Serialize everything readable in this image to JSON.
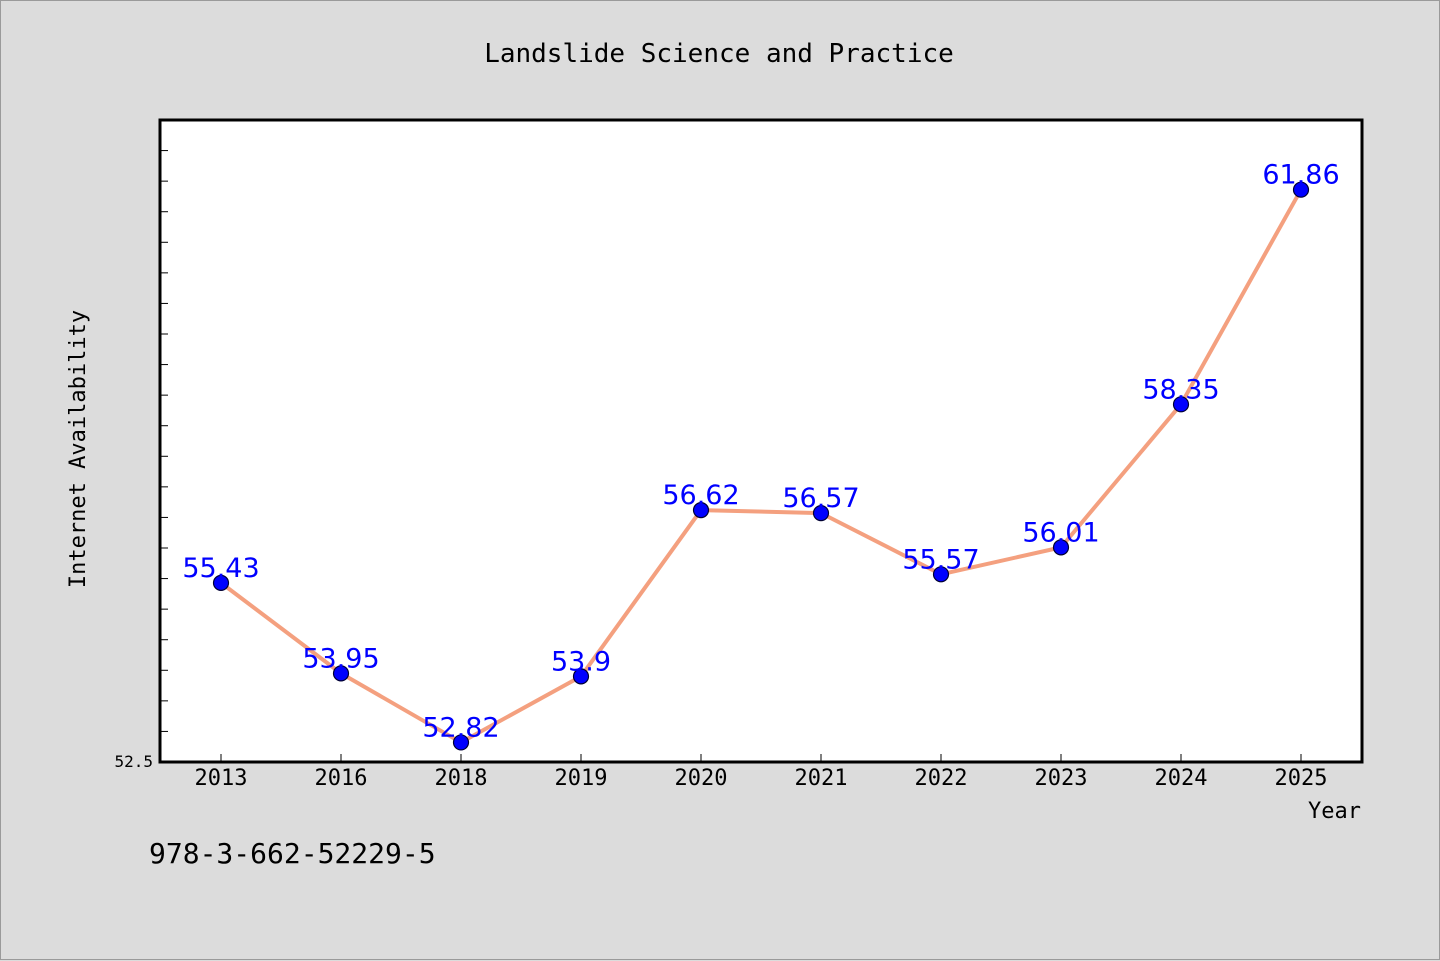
{
  "colors": {
    "background": "#dcdcdc",
    "plot_background": "#ffffff",
    "line": "#f4a07f",
    "marker_fill": "#0000ff",
    "marker_edge": "#000033",
    "data_label": "#0000ff"
  },
  "footer": {
    "code": "978-3-662-52229-5"
  },
  "chart_data": {
    "type": "line",
    "title": "Landslide Science and Practice",
    "xlabel": "Year",
    "ylabel": "Internet Availability",
    "categories": [
      "2013",
      "2016",
      "2018",
      "2019",
      "2020",
      "2021",
      "2022",
      "2023",
      "2024",
      "2025"
    ],
    "series": [
      {
        "values": [
          55.43,
          53.95,
          52.82,
          53.9,
          56.62,
          56.57,
          55.57,
          56.01,
          58.35,
          61.86
        ],
        "labels": [
          "55.43",
          "53.95",
          "52.82",
          "53.9",
          "56.62",
          "56.57",
          "55.57",
          "56.01",
          "58.35",
          "61.86"
        ]
      }
    ],
    "ylim": [
      52.5,
      63.0
    ],
    "ytick_labels": [
      "52.5"
    ],
    "grid": false,
    "legend": "none",
    "markers": true
  }
}
